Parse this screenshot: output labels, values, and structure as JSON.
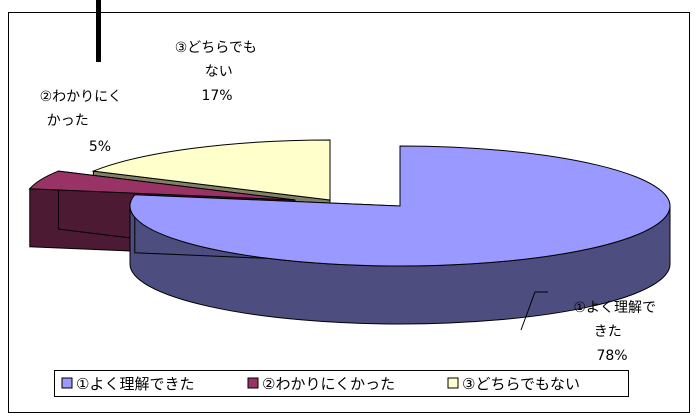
{
  "chart_data": {
    "type": "pie",
    "style": "3d-exploded",
    "title": "",
    "categories": [
      "①よく理解できた",
      "②わかりにくかった",
      "③どちらでもない"
    ],
    "values": [
      78,
      5,
      17
    ],
    "value_unit": "%",
    "colors": [
      "#9999ff",
      "#993366",
      "#ffffcc"
    ],
    "side_colors": [
      "#4d4d80",
      "#4d1a33",
      "#808066"
    ],
    "labels": [
      {
        "lines": [
          "①よく理解で",
          "きた"
        ],
        "value": "78%"
      },
      {
        "lines": [
          "②わかりにく",
          "かった"
        ],
        "value": "5%"
      },
      {
        "lines": [
          "③どちらでも",
          "ない"
        ],
        "value": "17%"
      }
    ],
    "legend": {
      "position": "bottom-left",
      "entries": [
        "①よく理解できた",
        "②わかりにくかった",
        "③どちらでもない"
      ]
    }
  }
}
